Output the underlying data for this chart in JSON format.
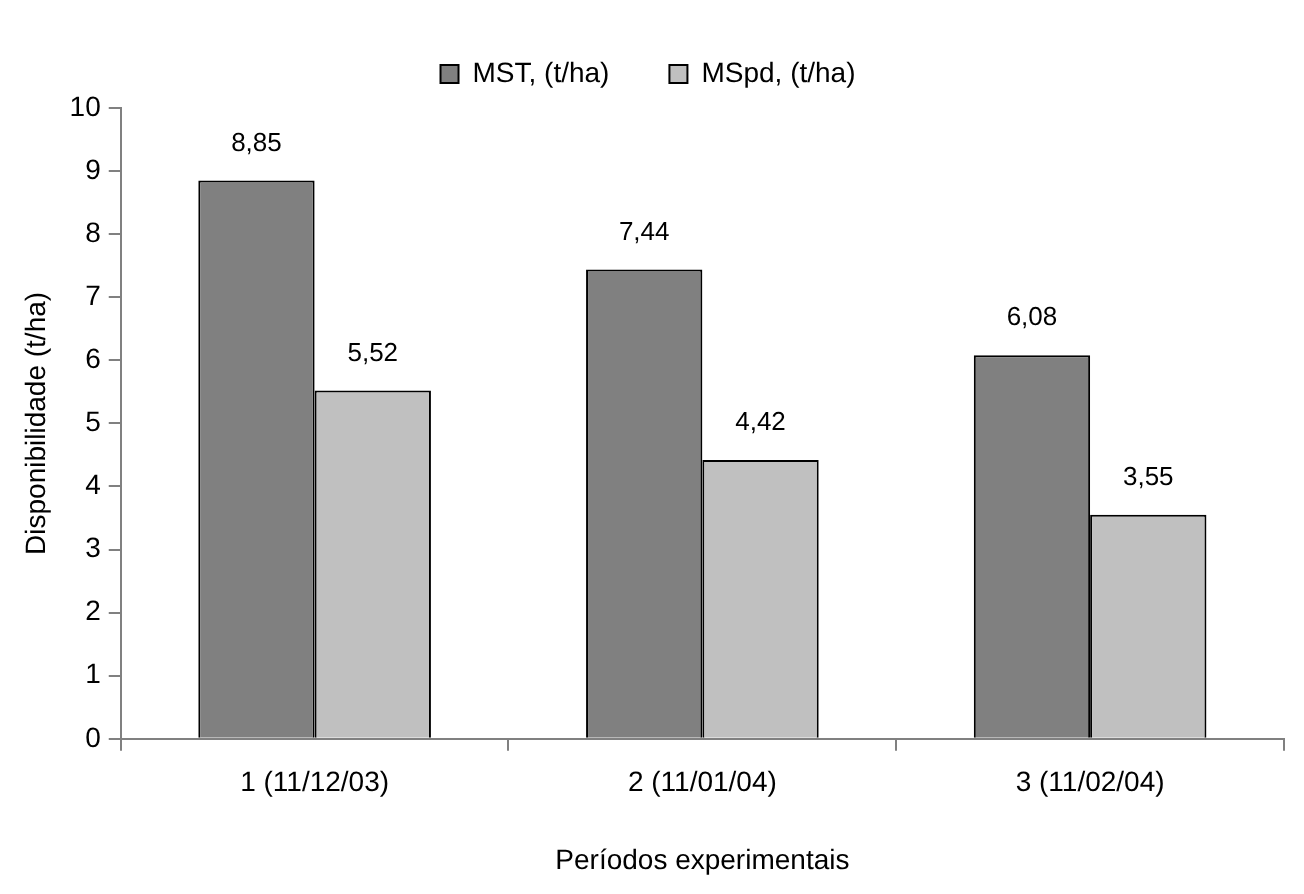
{
  "chart_data": {
    "type": "bar",
    "xlabel": "Períodos experimentais",
    "ylabel": "Disponibilidade (t/ha)",
    "categories": [
      "1 (11/12/03)",
      "2 (11/01/04)",
      "3 (11/02/04)"
    ],
    "series": [
      {
        "name": "MST, (t/ha)",
        "color": "#808080",
        "values": [
          8.85,
          7.44,
          6.08
        ],
        "value_labels": [
          "8,85",
          "7,44",
          "6,08"
        ]
      },
      {
        "name": "MSpd, (t/ha)",
        "color": "#c0c0c0",
        "values": [
          5.52,
          4.42,
          3.55
        ],
        "value_labels": [
          "5,52",
          "4,42",
          "3,55"
        ]
      }
    ],
    "ylim": [
      0,
      10
    ],
    "yticks": [
      0,
      1,
      2,
      3,
      4,
      5,
      6,
      7,
      8,
      9,
      10
    ],
    "grid": false,
    "legend": "top"
  }
}
